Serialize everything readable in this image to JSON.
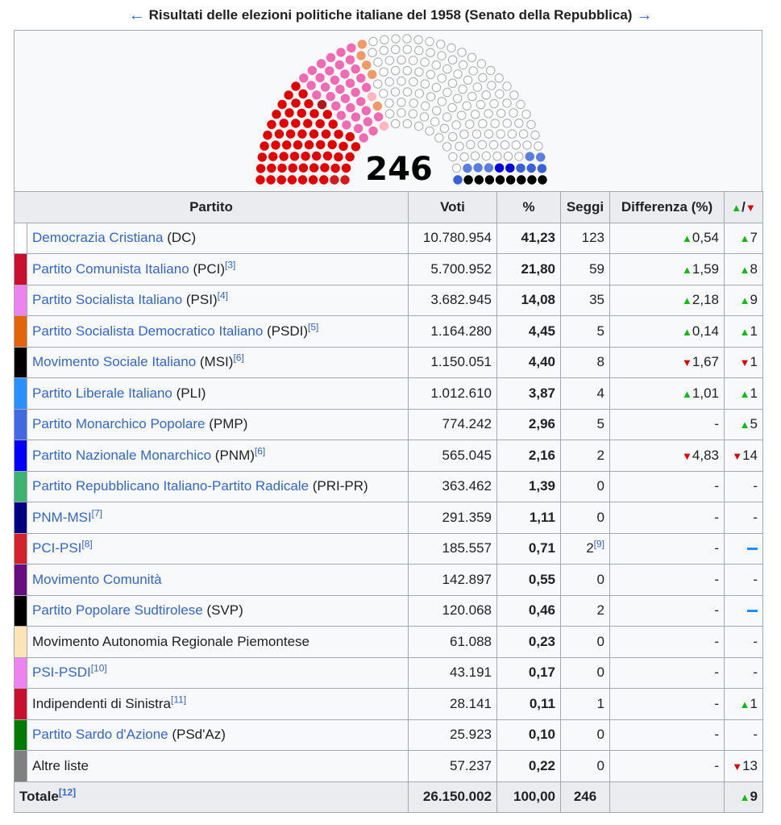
{
  "caption": {
    "prev_arrow": "←",
    "title": "Risultati delle elezioni politiche italiane del 1958 (Senato della Repubblica)",
    "next_arrow": "→"
  },
  "chart_data": {
    "type": "parliament",
    "total_label": "246",
    "seat_groups": [
      {
        "name": "PCI-PSI",
        "seats": 2,
        "color": "#d01c1c"
      },
      {
        "name": "PCI",
        "seats": 59,
        "color": "#e00000"
      },
      {
        "name": "Indipendenti di Sinistra",
        "seats": 1,
        "color": "#b0171f"
      },
      {
        "name": "PSI",
        "seats": 35,
        "color": "#f06ab4"
      },
      {
        "name": "SVP",
        "seats": 2,
        "color": "#ffb6c1"
      },
      {
        "name": "PSDI",
        "seats": 5,
        "color": "#f09a6a"
      },
      {
        "name": "MSI",
        "seats": 0,
        "color": "#888888"
      },
      {
        "name": "DC",
        "seats": 123,
        "color": "#ffffff"
      },
      {
        "name": "PMP",
        "seats": 5,
        "color": "#5b7fe0"
      },
      {
        "name": "PNM",
        "seats": 2,
        "color": "#0000dd"
      },
      {
        "name": "PLI",
        "seats": 4,
        "color": "#3a60d8"
      },
      {
        "name": "MSI-black",
        "seats": 8,
        "color": "#000000"
      }
    ]
  },
  "table": {
    "headers": {
      "party": "Partito",
      "votes": "Voti",
      "pct": "%",
      "seats": "Seggi",
      "diff": "Differenza (%)",
      "updown_up": "▲",
      "updown_sep": "/",
      "updown_down": "▼"
    },
    "rows": [
      {
        "color": "#ffffff",
        "link": "Democrazia Cristiana",
        "suffix": " (DC)",
        "ref": "",
        "votes": "10.780.954",
        "pct": "41,23",
        "seats": "123",
        "seat_ref": "",
        "diff_dir": "up",
        "diff": "0,54",
        "chg_dir": "up",
        "chg": "7"
      },
      {
        "color": "#c8102e",
        "link": "Partito Comunista Italiano",
        "suffix": " (PCI)",
        "ref": "[3]",
        "votes": "5.700.952",
        "pct": "21,80",
        "seats": "59",
        "seat_ref": "",
        "diff_dir": "up",
        "diff": "1,59",
        "chg_dir": "up",
        "chg": "8"
      },
      {
        "color": "#ee82ee",
        "link": "Partito Socialista Italiano",
        "suffix": " (PSI)",
        "ref": "[4]",
        "votes": "3.682.945",
        "pct": "14,08",
        "seats": "35",
        "seat_ref": "",
        "diff_dir": "up",
        "diff": "2,18",
        "chg_dir": "up",
        "chg": "9"
      },
      {
        "color": "#e2650c",
        "link": "Partito Socialista Democratico Italiano",
        "suffix": " (PSDI)",
        "ref": "[5]",
        "votes": "1.164.280",
        "pct": "4,45",
        "seats": "5",
        "seat_ref": "",
        "diff_dir": "up",
        "diff": "0,14",
        "chg_dir": "up",
        "chg": "1"
      },
      {
        "color": "#000000",
        "link": "Movimento Sociale Italiano",
        "suffix": " (MSI)",
        "ref": "[6]",
        "votes": "1.150.051",
        "pct": "4,40",
        "seats": "8",
        "seat_ref": "",
        "diff_dir": "down",
        "diff": "1,67",
        "chg_dir": "down",
        "chg": "1"
      },
      {
        "color": "#2a8fff",
        "link": "Partito Liberale Italiano",
        "suffix": " (PLI)",
        "ref": "",
        "votes": "1.012.610",
        "pct": "3,87",
        "seats": "4",
        "seat_ref": "",
        "diff_dir": "up",
        "diff": "1,01",
        "chg_dir": "up",
        "chg": "1"
      },
      {
        "color": "#4169e1",
        "link": "Partito Monarchico Popolare",
        "suffix": " (PMP)",
        "ref": "",
        "votes": "774.242",
        "pct": "2,96",
        "seats": "5",
        "seat_ref": "",
        "diff_dir": "none",
        "diff": "-",
        "chg_dir": "up",
        "chg": "5"
      },
      {
        "color": "#0000ff",
        "link": "Partito Nazionale Monarchico",
        "suffix": " (PNM)",
        "ref": "[6]",
        "votes": "565.045",
        "pct": "2,16",
        "seats": "2",
        "seat_ref": "",
        "diff_dir": "down",
        "diff": "4,83",
        "chg_dir": "down",
        "chg": "14"
      },
      {
        "color": "#3cb371",
        "link": "Partito Repubblicano Italiano-Partito Radicale",
        "suffix": " (PRI-PR)",
        "ref": "",
        "votes": "363.462",
        "pct": "1,39",
        "seats": "0",
        "seat_ref": "",
        "diff_dir": "none",
        "diff": "-",
        "chg_dir": "none",
        "chg": "-"
      },
      {
        "color": "#000080",
        "link": "PNM-MSI",
        "suffix": "",
        "ref": "[7]",
        "votes": "291.359",
        "pct": "1,11",
        "seats": "0",
        "seat_ref": "",
        "diff_dir": "none",
        "diff": "-",
        "chg_dir": "none",
        "chg": "-"
      },
      {
        "color": "#d2232a",
        "link": "PCI-PSI",
        "suffix": "",
        "ref": "[8]",
        "votes": "185.557",
        "pct": "0,71",
        "seats": "2",
        "seat_ref": "[9]",
        "diff_dir": "none",
        "diff": "-",
        "chg_dir": "dash",
        "chg": ""
      },
      {
        "color": "#6a0d83",
        "link": "Movimento Comunità",
        "suffix": "",
        "ref": "",
        "votes": "142.897",
        "pct": "0,55",
        "seats": "0",
        "seat_ref": "",
        "diff_dir": "none",
        "diff": "-",
        "chg_dir": "none",
        "chg": "-"
      },
      {
        "color": "#000000",
        "link": "Partito Popolare Sudtirolese",
        "suffix": " (SVP)",
        "ref": "",
        "votes": "120.068",
        "pct": "0,46",
        "seats": "2",
        "seat_ref": "",
        "diff_dir": "none",
        "diff": "-",
        "chg_dir": "dash",
        "chg": ""
      },
      {
        "color": "#ffe4b5",
        "link": "",
        "suffix": "Movimento Autonomia Regionale Piemontese",
        "ref": "",
        "votes": "61.088",
        "pct": "0,23",
        "seats": "0",
        "seat_ref": "",
        "diff_dir": "none",
        "diff": "-",
        "chg_dir": "none",
        "chg": "-"
      },
      {
        "color": "#ee82ee",
        "link": "PSI-PSDI",
        "suffix": "",
        "ref": "[10]",
        "votes": "43.191",
        "pct": "0,17",
        "seats": "0",
        "seat_ref": "",
        "diff_dir": "none",
        "diff": "-",
        "chg_dir": "none",
        "chg": "-"
      },
      {
        "color": "#c8102e",
        "link": "",
        "suffix": "Indipendenti di Sinistra",
        "ref": "[11]",
        "votes": "28.141",
        "pct": "0,11",
        "seats": "1",
        "seat_ref": "",
        "diff_dir": "none",
        "diff": "-",
        "chg_dir": "up",
        "chg": "1"
      },
      {
        "color": "#007a00",
        "link": "Partito Sardo d'Azione",
        "suffix": " (PSd'Az)",
        "ref": "",
        "votes": "25.923",
        "pct": "0,10",
        "seats": "0",
        "seat_ref": "",
        "diff_dir": "none",
        "diff": "-",
        "chg_dir": "none",
        "chg": "-"
      },
      {
        "color": "#808080",
        "link": "",
        "suffix": "Altre liste",
        "ref": "",
        "votes": "57.237",
        "pct": "0,22",
        "seats": "0",
        "seat_ref": "",
        "diff_dir": "none",
        "diff": "-",
        "chg_dir": "down",
        "chg": "13"
      }
    ],
    "total": {
      "label": "Totale",
      "ref": "[12]",
      "votes": "26.150.002",
      "pct": "100,00",
      "seats": "246",
      "chg_dir": "up",
      "chg": "9"
    }
  }
}
